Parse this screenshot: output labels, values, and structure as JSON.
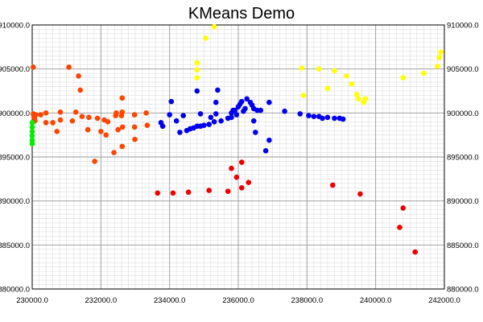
{
  "chart_data": {
    "type": "scatter",
    "title": "KMeans Demo",
    "xlabel": "",
    "ylabel": "",
    "x_ticks": [
      "230000.0",
      "232000.0",
      "234000.0",
      "236000.0",
      "238000.0",
      "240000.0",
      "242000.0"
    ],
    "y_ticks": [
      "880000.0",
      "885000.0",
      "890000.0",
      "895000.0",
      "900000.0",
      "905000.0",
      "910000.0"
    ],
    "xlim": [
      230000,
      242000
    ],
    "ylim": [
      880000,
      910000
    ],
    "grid": true,
    "series": [
      {
        "color": "#ff4500",
        "points": [
          [
            230030,
            905200
          ],
          [
            230030,
            899900
          ],
          [
            230050,
            899600
          ],
          [
            230070,
            899400
          ],
          [
            230080,
            899100
          ],
          [
            230100,
            899800
          ],
          [
            230250,
            899800
          ],
          [
            230400,
            898900
          ],
          [
            230400,
            900000
          ],
          [
            230600,
            898900
          ],
          [
            230720,
            897900
          ],
          [
            230820,
            899200
          ],
          [
            230820,
            900100
          ],
          [
            231070,
            905200
          ],
          [
            231170,
            899100
          ],
          [
            231270,
            900100
          ],
          [
            231350,
            904200
          ],
          [
            231400,
            902600
          ],
          [
            231450,
            899600
          ],
          [
            231620,
            898100
          ],
          [
            231650,
            899500
          ],
          [
            231820,
            894500
          ],
          [
            231900,
            899400
          ],
          [
            232000,
            897900
          ],
          [
            232100,
            899200
          ],
          [
            232150,
            897500
          ],
          [
            232200,
            899000
          ],
          [
            232380,
            895500
          ],
          [
            232430,
            899700
          ],
          [
            232450,
            900000
          ],
          [
            232500,
            898100
          ],
          [
            232600,
            899700
          ],
          [
            232620,
            900100
          ],
          [
            232620,
            896200
          ],
          [
            232620,
            901700
          ],
          [
            232630,
            898400
          ],
          [
            232980,
            899800
          ],
          [
            232980,
            898400
          ],
          [
            232990,
            897000
          ],
          [
            233320,
            900000
          ],
          [
            233350,
            898600
          ]
        ]
      },
      {
        "color": "#00ee00",
        "points": [
          [
            230000,
            898900
          ],
          [
            230000,
            898400
          ],
          [
            230000,
            897900
          ],
          [
            230000,
            897400
          ],
          [
            230000,
            896900
          ],
          [
            230000,
            896500
          ]
        ]
      },
      {
        "color": "#0000ee",
        "points": [
          [
            233750,
            898900
          ],
          [
            233800,
            898500
          ],
          [
            234000,
            899800
          ],
          [
            234050,
            901300
          ],
          [
            234200,
            899100
          ],
          [
            234300,
            897800
          ],
          [
            234400,
            899700
          ],
          [
            234500,
            898000
          ],
          [
            234600,
            898200
          ],
          [
            234700,
            898300
          ],
          [
            234800,
            898500
          ],
          [
            234800,
            902500
          ],
          [
            234900,
            898500
          ],
          [
            234900,
            899900
          ],
          [
            235000,
            898600
          ],
          [
            235150,
            898700
          ],
          [
            235200,
            899500
          ],
          [
            235300,
            899000
          ],
          [
            235350,
            901200
          ],
          [
            235350,
            899900
          ],
          [
            235400,
            902600
          ],
          [
            235500,
            899100
          ],
          [
            235700,
            899400
          ],
          [
            235800,
            900000
          ],
          [
            235800,
            899500
          ],
          [
            235850,
            900300
          ],
          [
            235900,
            900300
          ],
          [
            235950,
            899800
          ],
          [
            236000,
            900700
          ],
          [
            236050,
            901000
          ],
          [
            236100,
            901300
          ],
          [
            236150,
            900200
          ],
          [
            236200,
            900500
          ],
          [
            236250,
            901600
          ],
          [
            236350,
            901200
          ],
          [
            236400,
            900900
          ],
          [
            236450,
            899100
          ],
          [
            236450,
            900500
          ],
          [
            236500,
            897800
          ],
          [
            236550,
            900300
          ],
          [
            236650,
            900300
          ],
          [
            236800,
            895700
          ],
          [
            236900,
            901200
          ],
          [
            236900,
            896900
          ],
          [
            237350,
            900200
          ],
          [
            237800,
            899900
          ],
          [
            238050,
            899700
          ],
          [
            238200,
            899600
          ],
          [
            238350,
            899600
          ],
          [
            238450,
            899400
          ],
          [
            238600,
            899500
          ],
          [
            238800,
            899400
          ],
          [
            238950,
            899400
          ],
          [
            239050,
            899300
          ]
        ]
      },
      {
        "color": "#ffff00",
        "points": [
          [
            234800,
            905700
          ],
          [
            234800,
            904900
          ],
          [
            234800,
            904000
          ],
          [
            235050,
            908500
          ],
          [
            235300,
            909800
          ],
          [
            237850,
            905100
          ],
          [
            237900,
            902000
          ],
          [
            238350,
            905000
          ],
          [
            238600,
            902800
          ],
          [
            238800,
            904800
          ],
          [
            239150,
            904200
          ],
          [
            239300,
            903300
          ],
          [
            239450,
            902100
          ],
          [
            239500,
            901600
          ],
          [
            239650,
            901200
          ],
          [
            239700,
            901600
          ],
          [
            240800,
            904000
          ],
          [
            241400,
            904500
          ],
          [
            241800,
            905300
          ],
          [
            241850,
            906300
          ],
          [
            241900,
            906900
          ]
        ]
      },
      {
        "color": "#ee0000",
        "points": [
          [
            233650,
            890900
          ],
          [
            234100,
            890900
          ],
          [
            234550,
            891000
          ],
          [
            235150,
            891200
          ],
          [
            235700,
            891100
          ],
          [
            235800,
            893700
          ],
          [
            235950,
            892700
          ],
          [
            236100,
            891500
          ],
          [
            236100,
            894400
          ],
          [
            236300,
            892100
          ],
          [
            238750,
            891800
          ],
          [
            239550,
            890800
          ],
          [
            240700,
            887000
          ],
          [
            240800,
            889200
          ],
          [
            241150,
            884200
          ]
        ]
      }
    ]
  }
}
